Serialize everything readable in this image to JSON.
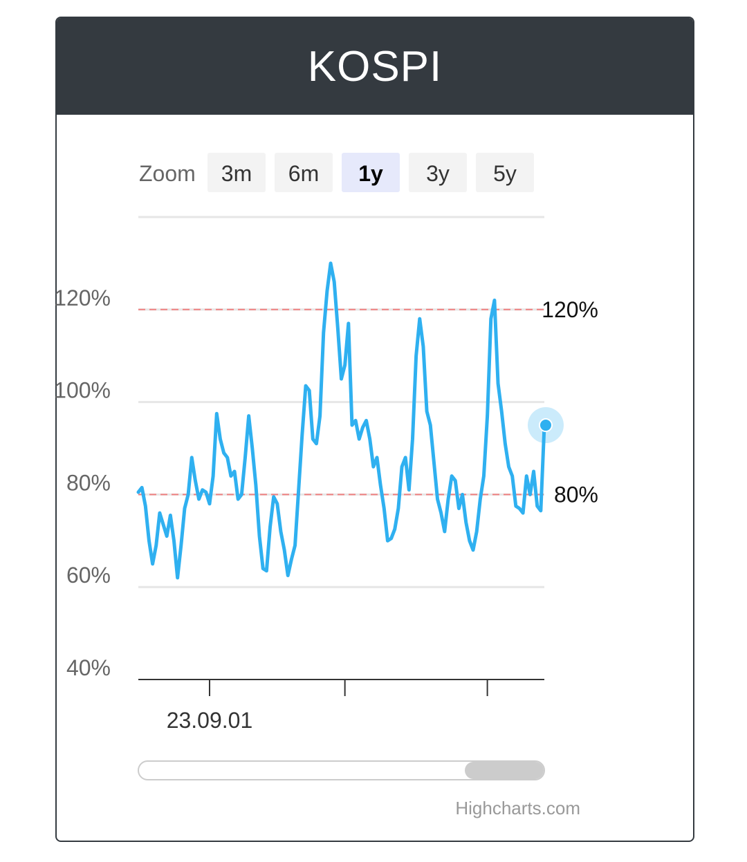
{
  "card": {
    "title": "KOSPI"
  },
  "zoom": {
    "label": "Zoom",
    "buttons": [
      {
        "label": "3m",
        "active": false
      },
      {
        "label": "6m",
        "active": false
      },
      {
        "label": "1y",
        "active": true
      },
      {
        "label": "3y",
        "active": false
      },
      {
        "label": "5y",
        "active": false
      }
    ]
  },
  "credit": "Highcharts.com",
  "colors": {
    "header_bg": "#343a40",
    "series": "#2fb0f0",
    "threshold": "#f08080",
    "grid": "#e6e6e6",
    "active_button": "#e6e9fb"
  },
  "chart_data": {
    "type": "line",
    "title": "",
    "xlabel": "",
    "ylabel": "",
    "ylim": [
      40,
      140
    ],
    "y_ticks": [
      "40%",
      "60%",
      "80%",
      "100%",
      "120%"
    ],
    "y_tick_values": [
      40,
      60,
      80,
      100,
      120
    ],
    "x_tick_labels": [
      {
        "label": "23.09.01",
        "index": 20
      },
      {
        "label": "",
        "index": 58
      },
      {
        "label": "",
        "index": 98
      }
    ],
    "plot_lines": [
      {
        "value": 120,
        "label": "120%"
      },
      {
        "value": 80,
        "label": "80%"
      }
    ],
    "grid": true,
    "last_point_highlighted": true,
    "series": [
      {
        "values": [
          80.5,
          81.5,
          77.5,
          70,
          65,
          69,
          76,
          73.5,
          71,
          75.5,
          70,
          62,
          69,
          77,
          80,
          88,
          83,
          79,
          81,
          80.5,
          78,
          84,
          97.5,
          92,
          89,
          88,
          84,
          85,
          79,
          80,
          88,
          97,
          90,
          82,
          71,
          64,
          63.5,
          73,
          79.5,
          78,
          72,
          68,
          62.5,
          66,
          69,
          81,
          93,
          103.5,
          102.5,
          92,
          91,
          97,
          115,
          124,
          130,
          126,
          116,
          105,
          108,
          117,
          95,
          96,
          92,
          94.5,
          96,
          92,
          86,
          88,
          82,
          77,
          70,
          70.5,
          72.5,
          77,
          86,
          88,
          81,
          92,
          110,
          118,
          112,
          98,
          95,
          87,
          79,
          76,
          72,
          79,
          84,
          83,
          77,
          80,
          74,
          70,
          68,
          72,
          79,
          84,
          97,
          118,
          122,
          104,
          98,
          91,
          86,
          84,
          77.5,
          77,
          76,
          84,
          80,
          85,
          77.5,
          76.5,
          95
        ]
      }
    ]
  }
}
